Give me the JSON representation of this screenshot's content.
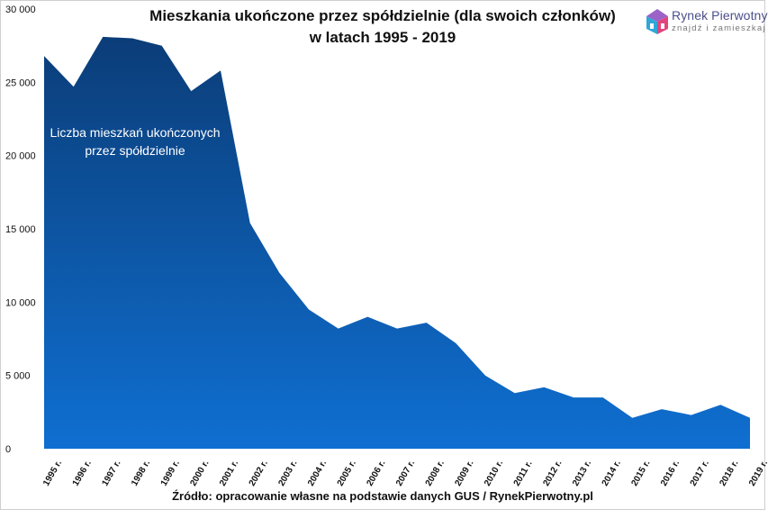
{
  "title_line1": "Mieszkania ukończone przez spółdzielnie (dla swoich członków)",
  "title_line2": "w latach 1995 - 2019",
  "logo": {
    "name": "Rynek Pierwotny",
    "tagline": "znajdź i zamieszkaj",
    "icon": "house-logo-icon"
  },
  "source": "Źródło: opracowanie własne na podstawie danych GUS / RynekPierwotny.pl",
  "colors": {
    "area_top": "#0b3d78",
    "area_bottom": "#0f6fd1",
    "text": "#111111"
  },
  "chart_data": {
    "type": "area",
    "title": "Mieszkania ukończone przez spółdzielnie (dla swoich członków) w latach 1995 - 2019",
    "categories": [
      "1995 r.",
      "1996 r.",
      "1997 r.",
      "1998 r.",
      "1999 r.",
      "2000 r.",
      "2001 r.",
      "2002 r.",
      "2003 r.",
      "2004 r.",
      "2005 r.",
      "2006 r.",
      "2007 r.",
      "2008 r.",
      "2009 r.",
      "2010 r.",
      "2011 r.",
      "2012 r.",
      "2013 r.",
      "2014 r.",
      "2015 r.",
      "2016 r.",
      "2017 r.",
      "2018 r.",
      "2019 r."
    ],
    "series": [
      {
        "values": [
          26800,
          24700,
          28100,
          28000,
          27500,
          24400,
          25800,
          15400,
          12000,
          9500,
          8200,
          9000,
          8200,
          8600,
          7200,
          5000,
          3800,
          4200,
          3500,
          3500,
          2100,
          2700,
          2300,
          3000,
          2100
        ]
      }
    ],
    "annotation": [
      "Liczba mieszkań ukończonych",
      "przez spółdzielnie"
    ],
    "ylim": [
      0,
      30000
    ],
    "yticks": [
      "0",
      "5 000",
      "10 000",
      "15 000",
      "20 000",
      "25 000",
      "30 000"
    ],
    "ytick_values": [
      0,
      5000,
      10000,
      15000,
      20000,
      25000,
      30000
    ],
    "grid": false,
    "legend": "none"
  }
}
